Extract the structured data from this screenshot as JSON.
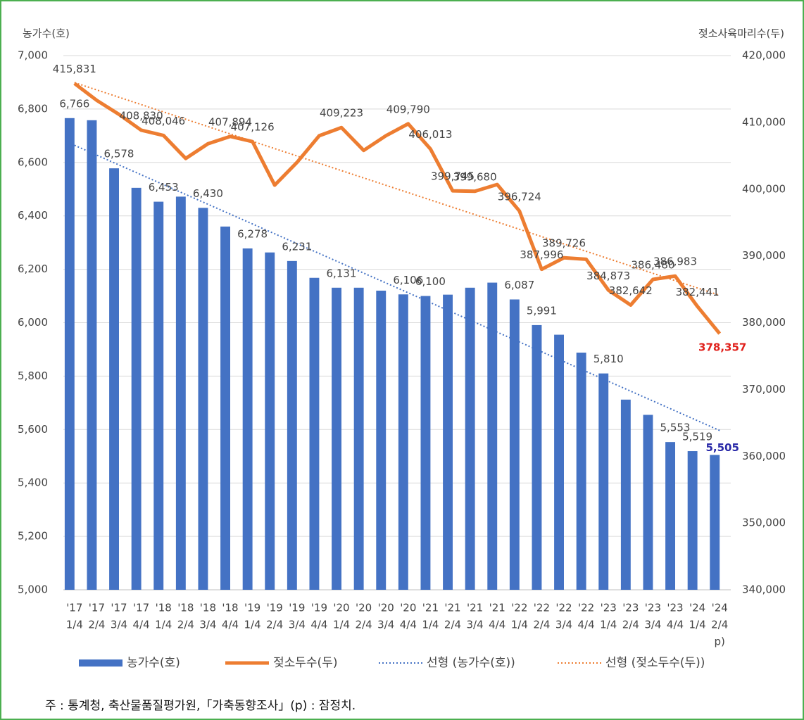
{
  "chart_data": {
    "type": "bar",
    "y_label": "농가수(호)",
    "y2_label": "젖소사육마리수(두)",
    "categories": [
      [
        "'17",
        "1/4"
      ],
      [
        "'17",
        "2/4"
      ],
      [
        "'17",
        "3/4"
      ],
      [
        "'17",
        "4/4"
      ],
      [
        "'18",
        "1/4"
      ],
      [
        "'18",
        "2/4"
      ],
      [
        "'18",
        "3/4"
      ],
      [
        "'18",
        "4/4"
      ],
      [
        "'19",
        "1/4"
      ],
      [
        "'19",
        "2/4"
      ],
      [
        "'19",
        "3/4"
      ],
      [
        "'19",
        "4/4"
      ],
      [
        "'20",
        "1/4"
      ],
      [
        "'20",
        "2/4"
      ],
      [
        "'20",
        "3/4"
      ],
      [
        "'20",
        "4/4"
      ],
      [
        "'21",
        "1/4"
      ],
      [
        "'21",
        "2/4"
      ],
      [
        "'21",
        "3/4"
      ],
      [
        "'21",
        "4/4"
      ],
      [
        "'22",
        "1/4"
      ],
      [
        "'22",
        "2/4"
      ],
      [
        "'22",
        "3/4"
      ],
      [
        "'22",
        "4/4"
      ],
      [
        "'23",
        "1/4"
      ],
      [
        "'23",
        "2/4"
      ],
      [
        "'23",
        "3/4"
      ],
      [
        "'23",
        "4/4"
      ],
      [
        "'24",
        "1/4"
      ],
      [
        "'24",
        "2/4",
        "p)"
      ]
    ],
    "series": [
      {
        "name": "농가수(호)",
        "type": "bar",
        "color": "#4472c4",
        "values": [
          6766,
          6758,
          6578,
          6505,
          6453,
          6472,
          6430,
          6360,
          6278,
          6263,
          6231,
          6168,
          6131,
          6131,
          6120,
          6106,
          6100,
          6105,
          6131,
          6150,
          6087,
          5991,
          5955,
          5888,
          5810,
          5712,
          5655,
          5553,
          5519,
          5505
        ],
        "value_labels": [
          "6,766",
          null,
          "6,578",
          null,
          "6,453",
          null,
          "6,430",
          null,
          "6,278",
          null,
          "6,231",
          null,
          "6,131",
          null,
          null,
          "6,106",
          "6,100",
          null,
          null,
          null,
          "6,087",
          "5,991",
          null,
          null,
          "5,810",
          null,
          null,
          "5,553",
          "5,519",
          "5,505"
        ]
      },
      {
        "name": "젖소두수(두)",
        "type": "line",
        "axis": "y2",
        "color": "#ed7d31",
        "values": [
          415831,
          413300,
          411200,
          408830,
          408046,
          404600,
          406800,
          407894,
          407126,
          400600,
          404000,
          408000,
          409223,
          405800,
          408000,
          409790,
          406013,
          399745,
          399680,
          400700,
          396724,
          387996,
          389726,
          389500,
          384873,
          382642,
          386480,
          386983,
          382441,
          378357
        ],
        "value_labels": [
          "415,831",
          null,
          null,
          "408,830",
          "408,046",
          null,
          null,
          "407,894",
          "407,126",
          null,
          null,
          null,
          "409,223",
          null,
          null,
          "409,790",
          "406,013",
          "399,745",
          "399,680",
          null,
          "396,724",
          "387,996",
          "389,726",
          null,
          "384,873",
          "382,642",
          "386,480",
          "386,983",
          "382,441",
          "378,357"
        ]
      }
    ],
    "trendlines": [
      {
        "name": "선형 (농가수(호))",
        "series": 0,
        "color": "#4472c4"
      },
      {
        "name": "선형 (젖소두수(두))",
        "series": 1,
        "color": "#ed7d31"
      }
    ],
    "ylim": [
      5000,
      7000
    ],
    "yticks": [
      {
        "value": 5000,
        "label": "5,000"
      },
      {
        "value": 5200,
        "label": "5,200"
      },
      {
        "value": 5400,
        "label": "5,400"
      },
      {
        "value": 5600,
        "label": "5,600"
      },
      {
        "value": 5800,
        "label": "5,800"
      },
      {
        "value": 6000,
        "label": "6,000"
      },
      {
        "value": 6200,
        "label": "6,200"
      },
      {
        "value": 6400,
        "label": "6,400"
      },
      {
        "value": 6600,
        "label": "6,600"
      },
      {
        "value": 6800,
        "label": "6,800"
      },
      {
        "value": 7000,
        "label": "7,000"
      }
    ],
    "y2lim": [
      340000,
      420000
    ],
    "y2ticks": [
      {
        "value": 340000,
        "label": "340,000"
      },
      {
        "value": 350000,
        "label": "350,000"
      },
      {
        "value": 360000,
        "label": "360,000"
      },
      {
        "value": 370000,
        "label": "370,000"
      },
      {
        "value": 380000,
        "label": "380,000"
      },
      {
        "value": 390000,
        "label": "390,000"
      },
      {
        "value": 400000,
        "label": "400,000"
      },
      {
        "value": 410000,
        "label": "410,000"
      },
      {
        "value": 420000,
        "label": "420,000"
      }
    ],
    "grid": true,
    "note": "주 : 통계청, 축산물품질평가원,「가축동향조사」(p) : 잠정치."
  }
}
